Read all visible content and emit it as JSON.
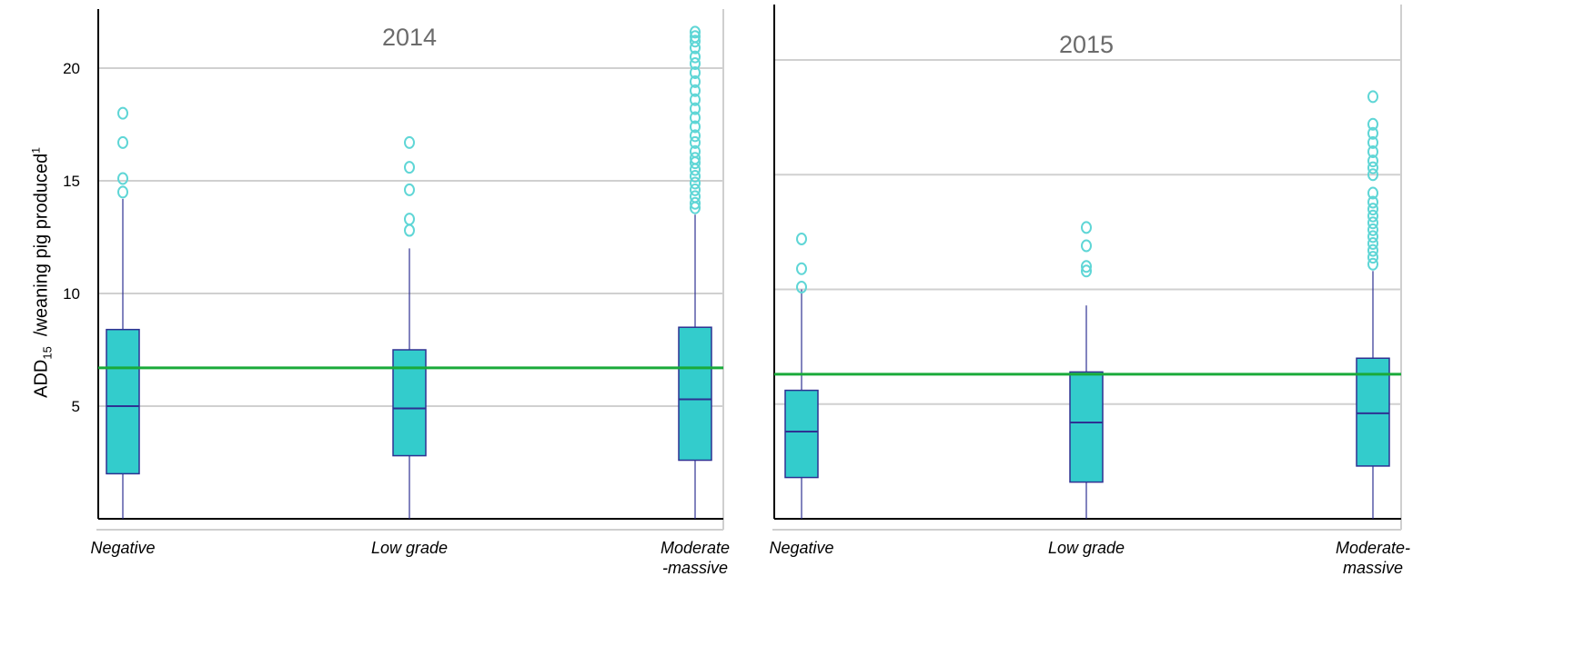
{
  "chart_data": [
    {
      "type": "box",
      "title": "2014",
      "categories": [
        "Negative",
        "Low grade",
        "Moderate-massive"
      ],
      "category_lines": [
        [
          "Negative"
        ],
        [
          "Low grade"
        ],
        [
          "Moderate",
          "-massive"
        ]
      ],
      "ylabel_main": "ADD",
      "ylabel_sub": "15",
      "ylabel_rest": "/weaning pig produced",
      "ylabel_sup": "1",
      "ylim": [
        0,
        22
      ],
      "yticks": [
        5,
        10,
        15,
        20
      ],
      "reference_line": 6.7,
      "boxes": [
        {
          "category": "Negative",
          "whisker_low": 0,
          "q1": 2.0,
          "median": 5.0,
          "q3": 8.4,
          "whisker_high": 14.2,
          "outliers": [
            14.5,
            15.1,
            16.7,
            18.0
          ]
        },
        {
          "category": "Low grade",
          "whisker_low": 0,
          "q1": 2.8,
          "median": 4.9,
          "q3": 7.5,
          "whisker_high": 12.0,
          "outliers": [
            12.8,
            13.3,
            14.6,
            15.6,
            16.7
          ]
        },
        {
          "category": "Moderate-massive",
          "whisker_low": 0,
          "q1": 2.6,
          "median": 5.3,
          "q3": 8.5,
          "whisker_high": 13.5,
          "outliers": [
            13.8,
            14.0,
            14.3,
            14.6,
            14.9,
            15.2,
            15.5,
            15.8,
            16.0,
            16.3,
            16.7,
            17.0,
            17.4,
            17.8,
            18.2,
            18.6,
            19.0,
            19.4,
            19.8,
            20.2,
            20.5,
            20.9,
            21.2,
            21.4,
            21.6
          ]
        }
      ]
    },
    {
      "type": "box",
      "title": "2015",
      "categories": [
        "Negative",
        "Low grade",
        "Moderate-massive"
      ],
      "category_lines": [
        [
          "Negative"
        ],
        [
          "Low grade"
        ],
        [
          "Moderate-",
          "massive"
        ]
      ],
      "ylim": [
        0,
        22
      ],
      "yticks": [
        5,
        10,
        15,
        20
      ],
      "reference_line": 6.3,
      "boxes": [
        {
          "category": "Negative",
          "whisker_low": 0,
          "q1": 1.8,
          "median": 3.8,
          "q3": 5.6,
          "whisker_high": 10.0,
          "outliers": [
            10.1,
            10.9,
            12.2
          ]
        },
        {
          "category": "Low grade",
          "whisker_low": 0,
          "q1": 1.6,
          "median": 4.2,
          "q3": 6.4,
          "whisker_high": 9.3,
          "outliers": [
            10.8,
            11.0,
            11.9,
            12.7
          ]
        },
        {
          "category": "Moderate-massive",
          "whisker_low": 0,
          "q1": 2.3,
          "median": 4.6,
          "q3": 7.0,
          "whisker_high": 10.8,
          "outliers": [
            11.1,
            11.4,
            11.7,
            12.0,
            12.3,
            12.6,
            12.9,
            13.2,
            13.5,
            13.8,
            14.2,
            15.0,
            15.3,
            15.6,
            16.0,
            16.4,
            16.8,
            17.2,
            18.4
          ]
        }
      ]
    }
  ],
  "colors": {
    "box_fill": "#33cccc",
    "box_stroke": "#2e3192",
    "outlier": "#5fd6d6",
    "reference": "#1aaa3a",
    "grid": "#d0d0d0",
    "axis": "#000000",
    "frame": "#cfcfcf"
  }
}
